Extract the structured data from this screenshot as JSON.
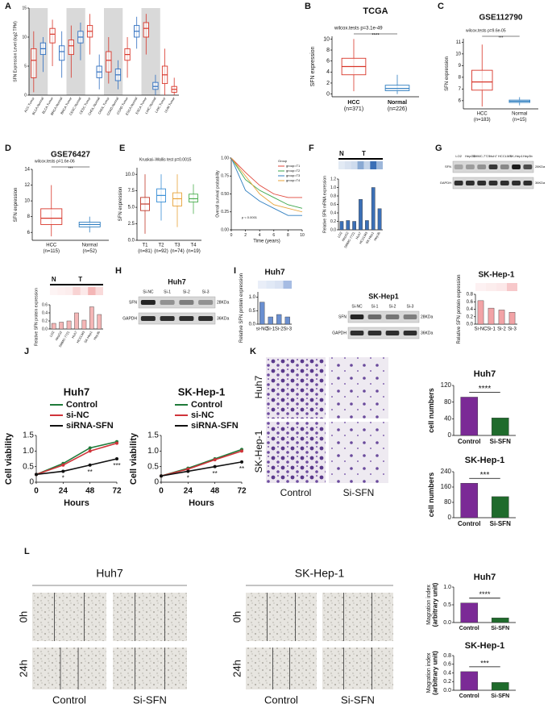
{
  "panels": [
    "A",
    "B",
    "C",
    "D",
    "E",
    "F",
    "G",
    "H",
    "I",
    "J",
    "K",
    "L"
  ],
  "chart_data": [
    {
      "type": "box",
      "ylabel": "SFN Expression Level (log2 TPM)",
      "categories": [
        "ACC.Tumor",
        "BLCA.Normal",
        "BLCA.Tumor",
        "BRCA.Normal",
        "BRCA.Tumor",
        "CESC.Normal",
        "CESC.Tumor",
        "CHOL.Normal",
        "CHOL.Tumor",
        "COAD.Normal",
        "COAD.Tumor",
        "ESCA.Normal",
        "ESCA.Tumor",
        "LIHC.Normal",
        "LIHC.Tumor",
        "UVM.Tumor"
      ],
      "boxes": [
        [
          0.5,
          3,
          6,
          8,
          11
        ],
        [
          4,
          7,
          8,
          9,
          10
        ],
        [
          5,
          9,
          10.5,
          11.5,
          13
        ],
        [
          3,
          6,
          7.5,
          8.5,
          11
        ],
        [
          3,
          7,
          8.5,
          9.5,
          12
        ],
        [
          6,
          9,
          10,
          11,
          12.5
        ],
        [
          7,
          10,
          11,
          12,
          14
        ],
        [
          1,
          3,
          4,
          5,
          7
        ],
        [
          2,
          4,
          6,
          7.5,
          10
        ],
        [
          1,
          2.5,
          3.5,
          4.5,
          6
        ],
        [
          3,
          6,
          7,
          8,
          10
        ],
        [
          8,
          10,
          11,
          12,
          13.5
        ],
        [
          7,
          10,
          11.5,
          12.5,
          14
        ],
        [
          0,
          1,
          1.5,
          2.2,
          3.5
        ],
        [
          0,
          2,
          3.5,
          5,
          8
        ],
        [
          0,
          0.5,
          1,
          1.5,
          3
        ]
      ],
      "colors": [
        "#d8362a",
        "#2f6fc0",
        "#d8362a",
        "#2f6fc0",
        "#d8362a",
        "#2f6fc0",
        "#d8362a",
        "#2f6fc0",
        "#d8362a",
        "#2f6fc0",
        "#d8362a",
        "#2f6fc0",
        "#d8362a",
        "#2f6fc0",
        "#d8362a",
        "#d8362a"
      ],
      "ylim": [
        0,
        15
      ],
      "yticks": [
        0,
        5,
        10,
        15
      ]
    },
    {
      "type": "box",
      "title": "TCGA",
      "subtitle": "wilcox.tests p=3.1e-49",
      "annotation": "****",
      "ylabel": "SFN expression",
      "categories": [
        "HCC",
        "Normal"
      ],
      "notes": [
        "(n=371)",
        "(n=226)"
      ],
      "boxes": [
        [
          0.5,
          3.5,
          5,
          6.5,
          10
        ],
        [
          0,
          0.6,
          1,
          1.6,
          3.5
        ]
      ],
      "colors": [
        "#d8362a",
        "#2f7ec0"
      ],
      "ylim": [
        -0.5,
        10.5
      ],
      "yticks": [
        0,
        2,
        4,
        6,
        8,
        10
      ]
    },
    {
      "type": "box",
      "title": "GSE112790",
      "subtitle": "wilcox.tests p=9.6e-05",
      "annotation": "***",
      "ylabel": "SFN expression",
      "categories": [
        "HCC",
        "Normal"
      ],
      "notes": [
        "(n=183)",
        "(n=15)"
      ],
      "boxes": [
        [
          5.5,
          6.9,
          7.6,
          8.6,
          10.8
        ],
        [
          5.6,
          5.85,
          5.95,
          6.05,
          6.3
        ]
      ],
      "colors": [
        "#d8362a",
        "#2f7ec0"
      ],
      "ylim": [
        5.3,
        11.3
      ],
      "yticks": [
        6,
        7,
        8,
        9,
        10,
        11
      ]
    },
    {
      "type": "box",
      "title": "GSE76427",
      "subtitle": "wilcox.tests p=1.6e-06",
      "annotation": "***",
      "ylabel": "SFN expression",
      "categories": [
        "HCC",
        "Normal"
      ],
      "notes": [
        "(n=115)",
        "(n=52)"
      ],
      "boxes": [
        [
          5.5,
          7,
          7.8,
          9,
          12
        ],
        [
          6,
          6.7,
          7,
          7.3,
          8
        ]
      ],
      "colors": [
        "#d8362a",
        "#2f7ec0"
      ],
      "ylim": [
        5,
        14
      ],
      "yticks": [
        6,
        8,
        10,
        12,
        14
      ]
    },
    {
      "type": "box",
      "subtitle": "Kruskal–Wallis test p=0.0015",
      "ylabel": "SFN expression",
      "categories": [
        "T1",
        "T2",
        "T3",
        "T4"
      ],
      "notes": [
        "(n=81)",
        "(n=92)",
        "(n=74)",
        "(n=19)"
      ],
      "boxes": [
        [
          1,
          4.5,
          5.5,
          6.5,
          10
        ],
        [
          3,
          5.8,
          6.8,
          7.8,
          10
        ],
        [
          2,
          5.2,
          6.3,
          7.2,
          10
        ],
        [
          4,
          5.8,
          6.3,
          7,
          8.5
        ]
      ],
      "colors": [
        "#c0392b",
        "#3a8fd6",
        "#e8a33a",
        "#4caf50"
      ],
      "ylim": [
        0,
        11
      ],
      "yticks": [
        {
          "value": 0,
          "label": "0.0"
        },
        {
          "value": 2.5,
          "label": "2.5"
        },
        {
          "value": 5,
          "label": "5.0"
        },
        {
          "value": 7.5,
          "label": "7.5"
        },
        {
          "value": 10,
          "label": "10.0"
        }
      ]
    },
    {
      "type": "line",
      "ylabel": "Overall survival probability",
      "xlabel": "Time (years)",
      "legend_title": "Group",
      "note": "p < 0.0001",
      "x": [
        0,
        2,
        4,
        6,
        8,
        10
      ],
      "series": [
        {
          "name": "group=T1",
          "color": "#e0463a",
          "values": [
            1,
            0.8,
            0.62,
            0.5,
            0.45,
            0.45
          ]
        },
        {
          "name": "group=T2",
          "color": "#3aa64a",
          "values": [
            1,
            0.7,
            0.55,
            0.45,
            0.35,
            0.3
          ]
        },
        {
          "name": "group=T3",
          "color": "#2f7ec0",
          "values": [
            1,
            0.55,
            0.4,
            0.3,
            0.2,
            0.2
          ]
        },
        {
          "name": "group=T4",
          "color": "#e8a33a",
          "values": [
            1,
            0.75,
            0.5,
            0.35,
            0.3,
            0.25
          ]
        }
      ],
      "xlim": [
        0,
        10
      ],
      "xticks": [
        0,
        2,
        4,
        6,
        8,
        10
      ],
      "ylim": [
        0,
        1
      ],
      "yticks": [
        {
          "value": 0,
          "label": "0.00"
        },
        {
          "value": 0.25,
          "label": "0.25"
        },
        {
          "value": 0.5,
          "label": "0.50"
        },
        {
          "value": 0.75,
          "label": "0.75"
        },
        {
          "value": 1,
          "label": "1.00"
        }
      ]
    },
    {
      "type": "bar",
      "ylabel": "Relative SFN mRNA expression",
      "groups": [
        "N",
        "T"
      ],
      "categories": [
        "LO2",
        "HepG2",
        "SMMC-7721",
        "Huh7",
        "HCCLM3",
        "SK-Hep1",
        "Hep3b"
      ],
      "values": [
        0.2,
        0.22,
        0.2,
        0.72,
        0.22,
        1.0,
        0.5
      ],
      "color": "#3b6fb6",
      "ylim": [
        0,
        1.2
      ],
      "yticks": [
        {
          "value": 0,
          "label": "0.0"
        },
        {
          "value": 0.2,
          "label": "0.2"
        },
        {
          "value": 0.4,
          "label": "0.4"
        },
        {
          "value": 0.6,
          "label": "0.6"
        },
        {
          "value": 0.8,
          "label": "0.8"
        },
        {
          "value": 1,
          "label": "1.0"
        },
        {
          "value": 1.2,
          "label": "1.2"
        }
      ]
    },
    {
      "type": "bar",
      "ylabel": "Relative SFN protein expression",
      "groups": [
        "N",
        "T"
      ],
      "categories": [
        "LO2",
        "HepG2",
        "SMMC-7721",
        "Huh7",
        "HCCLM3",
        "SK-Hep1",
        "Hep3b"
      ],
      "values": [
        0.14,
        0.17,
        0.2,
        0.4,
        0.22,
        0.55,
        0.36
      ],
      "color": "#f4b6b6",
      "ylim": [
        0,
        0.6
      ],
      "yticks": [
        {
          "value": 0,
          "label": "0.0"
        },
        {
          "value": 0.2,
          "label": "0.2"
        },
        {
          "value": 0.4,
          "label": "0.4"
        },
        {
          "value": 0.6,
          "label": "0.6"
        }
      ]
    },
    {
      "type": "bar",
      "title": "Huh7",
      "ylabel": "Relative SFN protein expression",
      "categories": [
        "si-NC",
        "Si-1",
        "Si-2",
        "Si-3"
      ],
      "values": [
        0.82,
        0.27,
        0.36,
        0.27
      ],
      "color": "#6a8fd0",
      "ylim": [
        0,
        1.2
      ],
      "yticks": [
        {
          "value": 0,
          "label": "0.0"
        },
        {
          "value": 0.5,
          "label": "0.5"
        },
        {
          "value": 1,
          "label": "1.0"
        }
      ]
    },
    {
      "type": "bar",
      "title": "SK-Hep-1",
      "ylabel": "Relative SFN protein expression",
      "categories": [
        "Si-NC",
        "Si-1",
        "Si-2",
        "Si-3"
      ],
      "values": [
        0.63,
        0.43,
        0.38,
        0.32
      ],
      "color": "#f2a3a6",
      "ylim": [
        0,
        0.8
      ],
      "yticks": [
        {
          "value": 0,
          "label": "0.0"
        },
        {
          "value": 0.2,
          "label": "0.2"
        },
        {
          "value": 0.4,
          "label": "0.4"
        },
        {
          "value": 0.6,
          "label": "0.6"
        },
        {
          "value": 0.8,
          "label": "0.8"
        }
      ]
    },
    {
      "type": "line",
      "title": "Huh7",
      "xlabel": "Hours",
      "ylabel": "Cell viability",
      "annotations": [
        "*",
        "**",
        "***"
      ],
      "x": [
        0,
        24,
        48,
        72
      ],
      "series": [
        {
          "name": "Control",
          "color": "#1f7a3a",
          "values": [
            0.25,
            0.6,
            1.1,
            1.3
          ]
        },
        {
          "name": "si-NC",
          "color": "#d0343a",
          "values": [
            0.25,
            0.55,
            1.0,
            1.25
          ]
        },
        {
          "name": "siRNA-SFN",
          "color": "#111111",
          "values": [
            0.25,
            0.35,
            0.55,
            0.75
          ]
        }
      ],
      "xlim": [
        0,
        72
      ],
      "xticks": [
        0,
        24,
        48,
        72
      ],
      "ylim": [
        0,
        1.5
      ],
      "yticks": [
        0,
        0.5,
        {
          "value": 1,
          "label": "1.0"
        },
        1.5
      ]
    },
    {
      "type": "line",
      "title": "SK-Hep-1",
      "xlabel": "Hours",
      "ylabel": "Cell viability",
      "annotations": [
        "*",
        "**",
        "**"
      ],
      "x": [
        0,
        24,
        48,
        72
      ],
      "series": [
        {
          "name": "Control",
          "color": "#1f7a3a",
          "values": [
            0.2,
            0.45,
            0.75,
            1.05
          ]
        },
        {
          "name": "si-NC",
          "color": "#d0343a",
          "values": [
            0.2,
            0.42,
            0.72,
            1.0
          ]
        },
        {
          "name": "siRNA-SFN",
          "color": "#111111",
          "values": [
            0.2,
            0.35,
            0.5,
            0.65
          ]
        }
      ],
      "xlim": [
        0,
        72
      ],
      "xticks": [
        0,
        24,
        48,
        72
      ],
      "ylim": [
        0,
        1.5
      ],
      "yticks": [
        0,
        0.5,
        {
          "value": 1,
          "label": "1.0"
        },
        1.5
      ]
    },
    {
      "type": "bar",
      "title": "Huh7",
      "ylabel": "cell numbers",
      "annotation": "****",
      "categories": [
        "Control",
        "Si-SFN"
      ],
      "values": [
        92,
        42
      ],
      "colors": [
        "#7b2a96",
        "#1f6b2c"
      ],
      "ylim": [
        0,
        120
      ],
      "yticks": [
        0,
        40,
        80,
        120
      ]
    },
    {
      "type": "bar",
      "title": "SK-Hep-1",
      "ylabel": "cell numbers",
      "annotation": "***",
      "categories": [
        "Control",
        "Si-SFN"
      ],
      "values": [
        180,
        110
      ],
      "colors": [
        "#7b2a96",
        "#1f6b2c"
      ],
      "ylim": [
        0,
        240
      ],
      "yticks": [
        0,
        80,
        160,
        240
      ]
    },
    {
      "type": "bar",
      "title": "Huh7",
      "ylabel": "Magration index",
      "ylabel2": "(arbitrary unit)",
      "annotation": "****",
      "categories": [
        "Control",
        "Si-SFN"
      ],
      "values": [
        0.55,
        0.13
      ],
      "colors": [
        "#7b2a96",
        "#1f6b2c"
      ],
      "ylim": [
        0,
        1
      ],
      "yticks": [
        {
          "value": 0,
          "label": "0.0"
        },
        {
          "value": 0.5,
          "label": "0.5"
        },
        {
          "value": 1,
          "label": "1.0"
        }
      ]
    },
    {
      "type": "bar",
      "title": "SK-Hep-1",
      "ylabel": "Magration index",
      "ylabel2": "(arbitrary unit)",
      "annotation": "***",
      "categories": [
        "Control",
        "Si-SFN"
      ],
      "values": [
        0.43,
        0.18
      ],
      "colors": [
        "#7b2a96",
        "#1f6b2c"
      ],
      "ylim": [
        0,
        0.8
      ],
      "yticks": [
        {
          "value": 0,
          "label": "0.0"
        },
        {
          "value": 0.2,
          "label": "0.2"
        },
        {
          "value": 0.4,
          "label": "0.4"
        },
        {
          "value": 0.6,
          "label": "0.6"
        },
        {
          "value": 0.8,
          "label": "0.8"
        }
      ]
    }
  ],
  "blots": [
    {
      "lanes": [
        "LO2",
        "HepG2",
        "SMMC-7721",
        "Huh7",
        "HCCLM3",
        "SK-Hep1",
        "Hep3b"
      ],
      "bands": [
        "SFN",
        "GAPDH"
      ],
      "sizes": [
        "28KDa",
        "36KDa"
      ]
    },
    {
      "title": "Huh7",
      "lanes": [
        "Si-NC",
        "Si-1",
        "Si-2",
        "Si-3"
      ],
      "bands": [
        "SFN",
        "GAPDH"
      ],
      "sizes": [
        "28KDa",
        "36KDa"
      ]
    },
    {
      "title": "SK-Hep1",
      "lanes": [
        "Si-NC",
        "Si-1",
        "Si-2",
        "Si-3"
      ],
      "bands": [
        "SFN",
        "GAPDH"
      ],
      "sizes": [
        "28KDa",
        "36KDa"
      ]
    }
  ],
  "migration_images": {
    "rows": [
      "Huh7",
      "SK-Hep-1"
    ],
    "columns": [
      "Control",
      "Si-SFN"
    ]
  },
  "wound_images": {
    "groups": [
      "Huh7",
      "SK-Hep-1"
    ],
    "rows": [
      "0h",
      "24h"
    ],
    "columns": [
      "Control",
      "Si-SFN"
    ]
  }
}
